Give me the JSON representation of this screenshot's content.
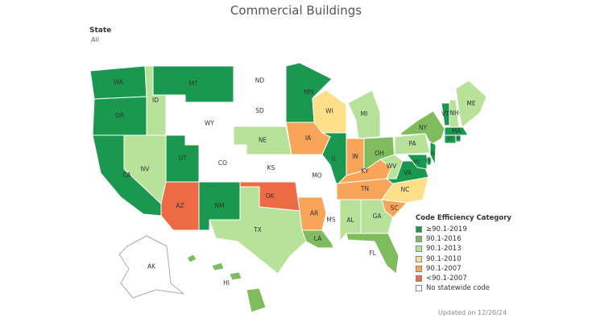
{
  "title": "Commercial Buildings",
  "filter": {
    "label": "State",
    "value": "All"
  },
  "legend": {
    "title": "Code Efficiency Category",
    "items": [
      {
        "key": "c2019",
        "label": "≥90.1-2019",
        "color": "#1a9850"
      },
      {
        "key": "c2016",
        "label": "90.1-2016",
        "color": "#7fbc5e"
      },
      {
        "key": "c2013",
        "label": "90.1-2013",
        "color": "#b8e29a"
      },
      {
        "key": "c2010",
        "label": "90.1-2010",
        "color": "#fee08b"
      },
      {
        "key": "c2007",
        "label": "90.1-2007",
        "color": "#f8a55a"
      },
      {
        "key": "clt2007",
        "label": "<90.1-2007",
        "color": "#ee6a45"
      },
      {
        "key": "none",
        "label": "No statewide code",
        "color": "#ffffff"
      }
    ]
  },
  "states": [
    {
      "abbr": "WA",
      "cat": "c2019"
    },
    {
      "abbr": "OR",
      "cat": "c2019"
    },
    {
      "abbr": "CA",
      "cat": "c2019"
    },
    {
      "abbr": "ID",
      "cat": "c2013"
    },
    {
      "abbr": "NV",
      "cat": "c2013"
    },
    {
      "abbr": "MT",
      "cat": "c2019"
    },
    {
      "abbr": "WY",
      "cat": "none"
    },
    {
      "abbr": "UT",
      "cat": "c2019"
    },
    {
      "abbr": "AZ",
      "cat": "clt2007"
    },
    {
      "abbr": "CO",
      "cat": "none"
    },
    {
      "abbr": "NM",
      "cat": "c2019"
    },
    {
      "abbr": "ND",
      "cat": "none"
    },
    {
      "abbr": "SD",
      "cat": "none"
    },
    {
      "abbr": "NE",
      "cat": "c2013"
    },
    {
      "abbr": "KS",
      "cat": "none"
    },
    {
      "abbr": "OK",
      "cat": "clt2007"
    },
    {
      "abbr": "TX",
      "cat": "c2013"
    },
    {
      "abbr": "MN",
      "cat": "c2019"
    },
    {
      "abbr": "IA",
      "cat": "c2007"
    },
    {
      "abbr": "MO",
      "cat": "none"
    },
    {
      "abbr": "AR",
      "cat": "c2007"
    },
    {
      "abbr": "LA",
      "cat": "c2016"
    },
    {
      "abbr": "WI",
      "cat": "c2010"
    },
    {
      "abbr": "IL",
      "cat": "c2019"
    },
    {
      "abbr": "MS",
      "cat": "none"
    },
    {
      "abbr": "MI",
      "cat": "c2013"
    },
    {
      "abbr": "IN",
      "cat": "c2007"
    },
    {
      "abbr": "KY",
      "cat": "c2007"
    },
    {
      "abbr": "TN",
      "cat": "c2007"
    },
    {
      "abbr": "AL",
      "cat": "c2013"
    },
    {
      "abbr": "GA",
      "cat": "c2013"
    },
    {
      "abbr": "FL",
      "cat": "c2016"
    },
    {
      "abbr": "OH",
      "cat": "c2016"
    },
    {
      "abbr": "WV",
      "cat": "c2013"
    },
    {
      "abbr": "VA",
      "cat": "c2019"
    },
    {
      "abbr": "NC",
      "cat": "c2010"
    },
    {
      "abbr": "SC",
      "cat": "c2007"
    },
    {
      "abbr": "PA",
      "cat": "c2013"
    },
    {
      "abbr": "NY",
      "cat": "c2016"
    },
    {
      "abbr": "VT",
      "cat": "c2019"
    },
    {
      "abbr": "NH",
      "cat": "c2013"
    },
    {
      "abbr": "ME",
      "cat": "c2013"
    },
    {
      "abbr": "MA",
      "cat": "c2019"
    },
    {
      "abbr": "RI",
      "cat": "c2019"
    },
    {
      "abbr": "CT",
      "cat": "c2019"
    },
    {
      "abbr": "NJ",
      "cat": "c2019"
    },
    {
      "abbr": "DE",
      "cat": "c2019"
    },
    {
      "abbr": "MD",
      "cat": "c2019"
    },
    {
      "abbr": "AK",
      "cat": "none"
    },
    {
      "abbr": "HI",
      "cat": "c2016"
    }
  ],
  "footer": {
    "updated": "Updated on 12/20/24"
  }
}
